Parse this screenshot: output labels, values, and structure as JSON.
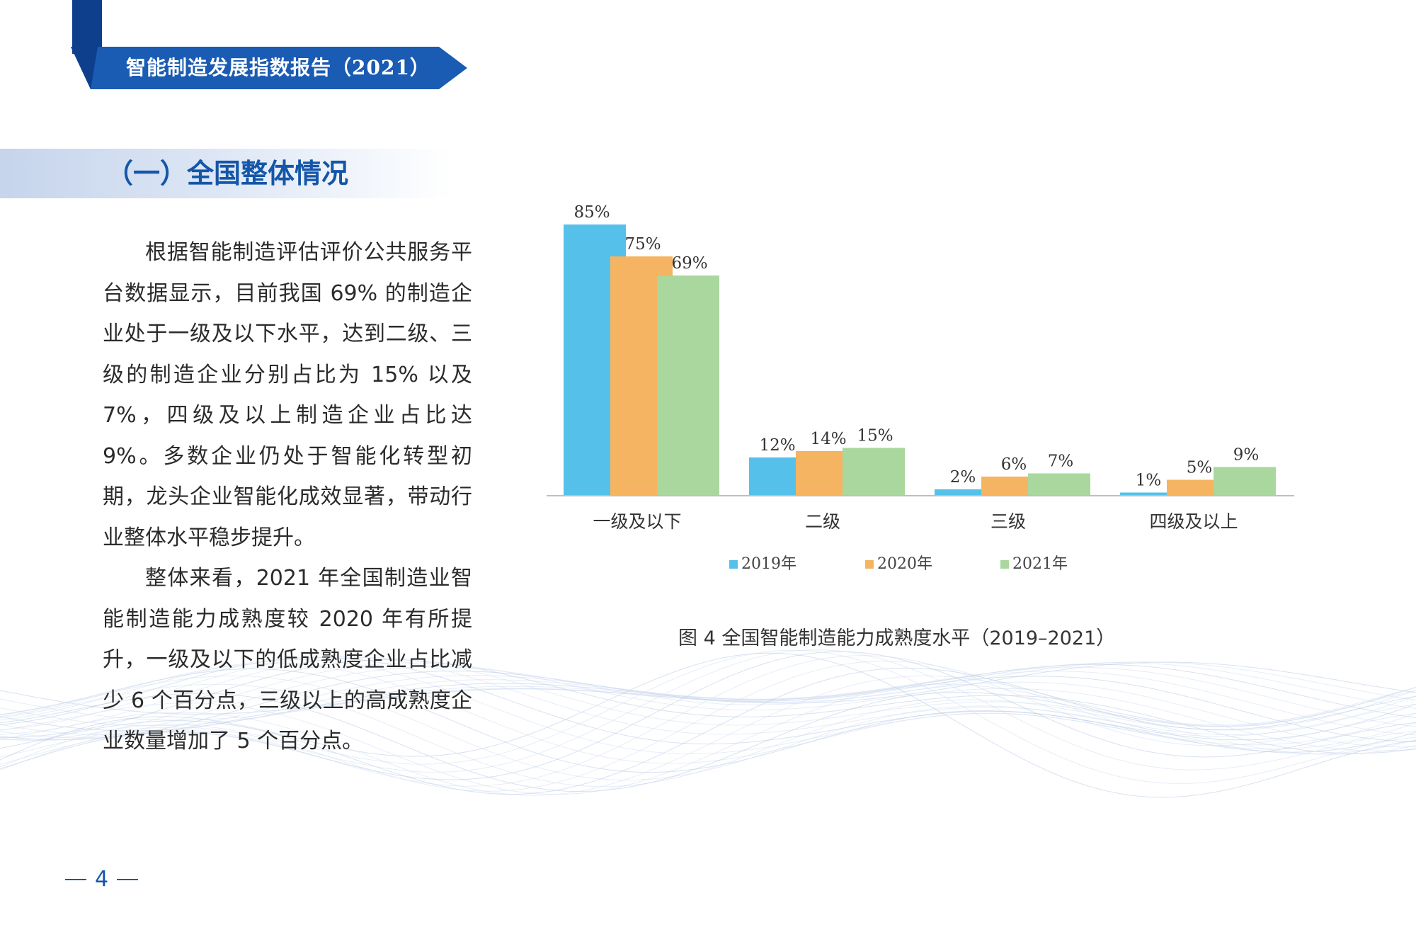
{
  "header": {
    "report_title": "智能制造发展指数报告（2021）"
  },
  "section": {
    "title": "（一）全国整体情况"
  },
  "body": {
    "paragraph1": "根据智能制造评估评价公共服务平台数据显示，目前我国 69% 的制造企业处于一级及以下水平，达到二级、三级的制造企业分别占比为 15% 以及 7%，四级及以上制造企业占比达 9%。多数企业仍处于智能化转型初期，龙头企业智能化成效显著，带动行业整体水平稳步提升。",
    "paragraph2": "整体来看，2021 年全国制造业智能制造能力成熟度较 2020 年有所提升，一级及以下的低成熟度企业占比减少 6 个百分点，三级以上的高成熟度企业数量增加了 5 个百分点。"
  },
  "figure": {
    "caption": "图 4  全国智能制造能力成熟度水平（2019–2021）"
  },
  "page": {
    "number": "4"
  },
  "colors": {
    "brand_blue": "#1456a8",
    "header_navy": "#0d3f8c"
  },
  "chart_data": {
    "type": "bar",
    "title": "",
    "xlabel": "",
    "ylabel": "",
    "ylim": [
      0,
      85
    ],
    "grid": false,
    "legend_position": "bottom",
    "categories": [
      "一级及以下",
      "二级",
      "三级",
      "四级及以上"
    ],
    "series": [
      {
        "name": "2019年",
        "color": "#55c1ea",
        "values": [
          85,
          12,
          2,
          1
        ],
        "labels": [
          "85%",
          "12%",
          "2%",
          "1%"
        ]
      },
      {
        "name": "2020年",
        "color": "#f5b461",
        "values": [
          75,
          14,
          6,
          5
        ],
        "labels": [
          "75%",
          "14%",
          "6%",
          "5%"
        ]
      },
      {
        "name": "2021年",
        "color": "#a9d79e",
        "values": [
          69,
          15,
          7,
          9
        ],
        "labels": [
          "69%",
          "15%",
          "7%",
          "9%"
        ]
      }
    ]
  }
}
